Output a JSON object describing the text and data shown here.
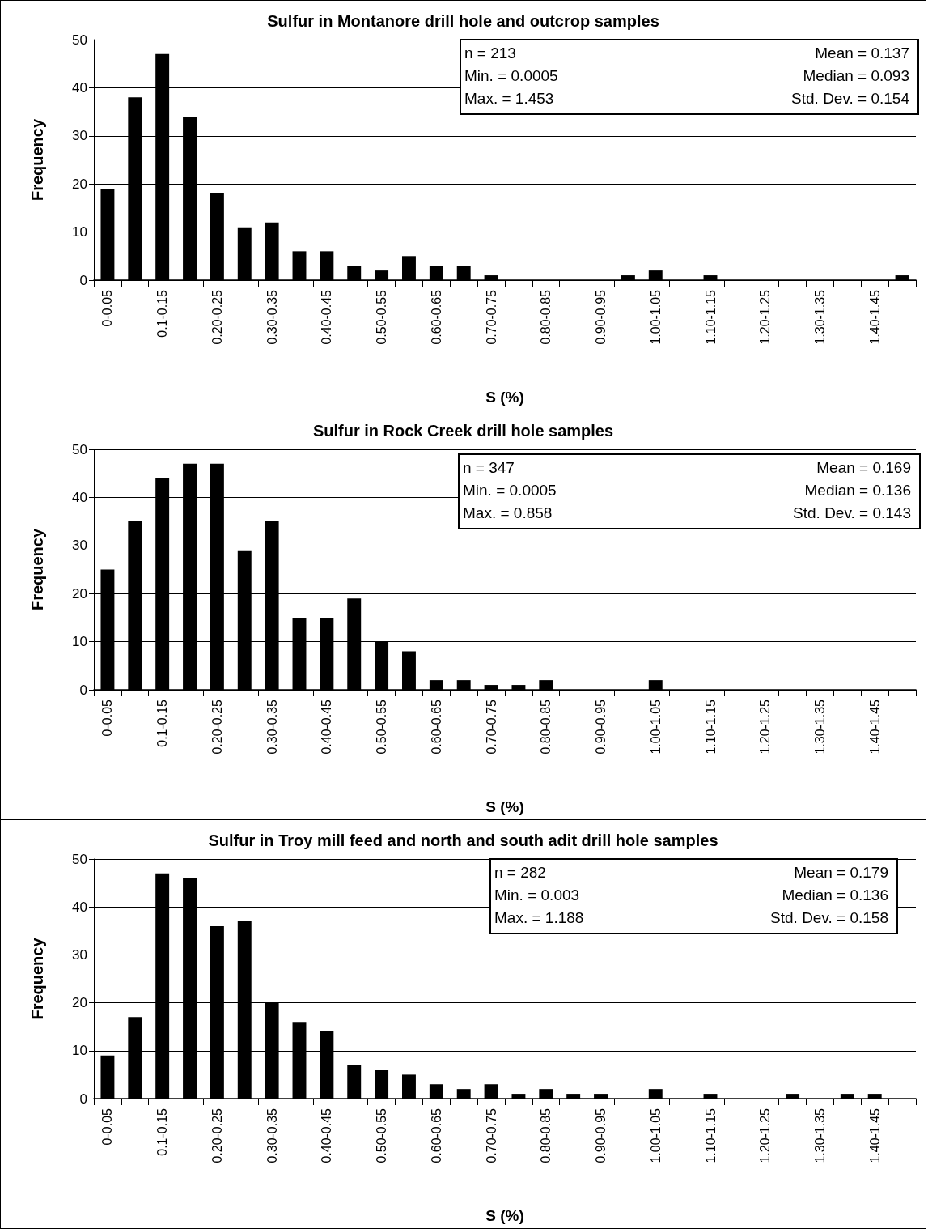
{
  "chart_data": [
    {
      "type": "bar",
      "title": "Sulfur in Montanore drill hole and outcrop samples",
      "xlabel": "S (%)",
      "ylabel": "Frequency",
      "categories": [
        "0-0.05",
        null,
        "0.1-0.15",
        null,
        "0.20-0.25",
        null,
        "0.30-0.35",
        null,
        "0.40-0.45",
        null,
        "0.50-0.55",
        null,
        "0.60-0.65",
        null,
        "0.70-0.75",
        null,
        "0.80-0.85",
        null,
        "0.90-0.95",
        null,
        "1.00-1.05",
        null,
        "1.10-1.15",
        null,
        "1.20-1.25",
        null,
        "1.30-1.35",
        null,
        "1.40-1.45",
        null
      ],
      "values": [
        19,
        38,
        47,
        34,
        18,
        11,
        12,
        6,
        6,
        3,
        2,
        5,
        3,
        3,
        1,
        0,
        0,
        0,
        0,
        1,
        2,
        0,
        1,
        0,
        0,
        0,
        0,
        0,
        0,
        1
      ],
      "color": "#000000",
      "ylim": [
        0,
        50
      ],
      "yticks": [
        0,
        10,
        20,
        30,
        40,
        50
      ],
      "grid": "y",
      "annotations": [
        "n = 213",
        "Mean = 0.137",
        "Min. = 0.0005",
        "Median = 0.093",
        "Max. = 1.453",
        "Std. Dev. = 0.154"
      ]
    },
    {
      "type": "bar",
      "title": "Sulfur in Rock Creek drill hole samples",
      "xlabel": "S (%)",
      "ylabel": "Frequency",
      "categories": [
        "0-0.05",
        null,
        "0.1-0.15",
        null,
        "0.20-0.25",
        null,
        "0.30-0.35",
        null,
        "0.40-0.45",
        null,
        "0.50-0.55",
        null,
        "0.60-0.65",
        null,
        "0.70-0.75",
        null,
        "0.80-0.85",
        null,
        "0.90-0.95",
        null,
        "1.00-1.05",
        null,
        "1.10-1.15",
        null,
        "1.20-1.25",
        null,
        "1.30-1.35",
        null,
        "1.40-1.45",
        null
      ],
      "values": [
        25,
        35,
        44,
        47,
        47,
        29,
        35,
        15,
        15,
        19,
        10,
        8,
        2,
        2,
        1,
        1,
        2,
        0,
        0,
        0,
        2,
        0,
        0,
        0,
        0,
        0,
        0,
        0,
        0,
        0
      ],
      "color": "#000000",
      "ylim": [
        0,
        50
      ],
      "yticks": [
        0,
        10,
        20,
        30,
        40,
        50
      ],
      "grid": "y",
      "annotations": [
        "n = 347",
        "Mean = 0.169",
        "Min. = 0.0005",
        "Median = 0.136",
        "Max. = 0.858",
        "Std. Dev. = 0.143"
      ]
    },
    {
      "type": "bar",
      "title": "Sulfur in Troy mill feed and north and south adit drill hole samples",
      "xlabel": "S (%)",
      "ylabel": "Frequency",
      "categories": [
        "0-0.05",
        null,
        "0.1-0.15",
        null,
        "0.20-0.25",
        null,
        "0.30-0.35",
        null,
        "0.40-0.45",
        null,
        "0.50-0.55",
        null,
        "0.60-0.65",
        null,
        "0.70-0.75",
        null,
        "0.80-0.85",
        null,
        "0.90-0.95",
        null,
        "1.00-1.05",
        null,
        "1.10-1.15",
        null,
        "1.20-1.25",
        null,
        "1.30-1.35",
        null,
        "1.40-1.45",
        null
      ],
      "values": [
        9,
        17,
        47,
        46,
        36,
        37,
        20,
        16,
        14,
        7,
        6,
        5,
        3,
        2,
        3,
        1,
        2,
        1,
        1,
        0,
        2,
        0,
        1,
        0,
        0,
        1,
        0,
        1,
        1,
        0
      ],
      "color": "#000000",
      "ylim": [
        0,
        50
      ],
      "yticks": [
        0,
        10,
        20,
        30,
        40,
        50
      ],
      "grid": "y",
      "annotations": [
        "n = 282",
        "Mean = 0.179",
        "Min. = 0.003",
        "Median = 0.136",
        "Max. = 1.188",
        "Std. Dev. = 0.158"
      ]
    }
  ]
}
